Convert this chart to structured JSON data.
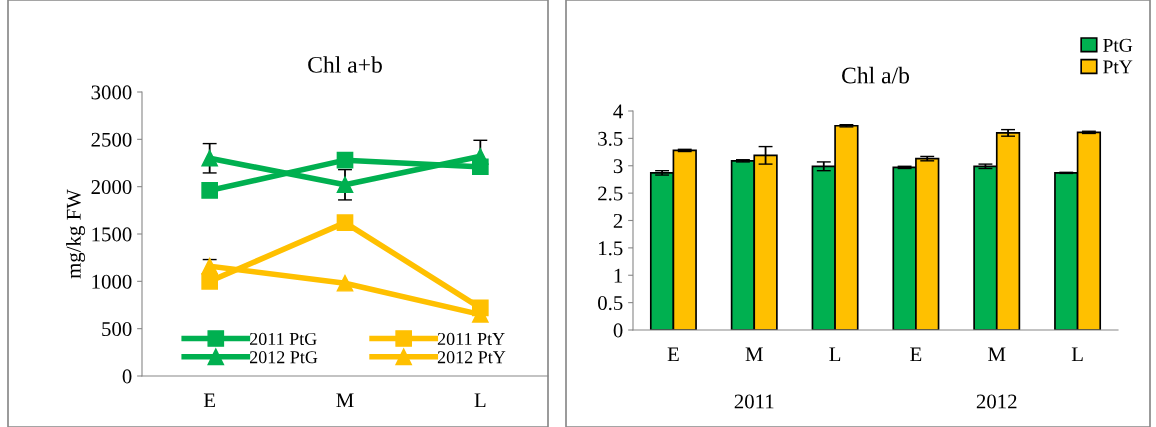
{
  "chart_data": [
    {
      "type": "line",
      "title": "Chl a+b",
      "ylabel": "mg/kg FW",
      "categories": [
        "E",
        "M",
        "L"
      ],
      "ylim": [
        0,
        3000
      ],
      "yticks": [
        0,
        500,
        1000,
        1500,
        2000,
        2500,
        3000
      ],
      "grid": false,
      "legend": "bottom",
      "series": [
        {
          "name": "2011 PtG",
          "color": "#00b050",
          "marker": "square",
          "values": [
            1960,
            2280,
            2210
          ]
        },
        {
          "name": "2012 PtG",
          "color": "#00b050",
          "marker": "triangle",
          "values": [
            2300,
            2020,
            2320
          ],
          "errors": [
            155,
            160,
            170
          ]
        },
        {
          "name": "2011 PtY",
          "color": "#ffc000",
          "marker": "square",
          "values": [
            1000,
            1620,
            720
          ]
        },
        {
          "name": "2012 PtY",
          "color": "#ffc000",
          "marker": "triangle",
          "values": [
            1160,
            980,
            650
          ],
          "errors": [
            70,
            null,
            null
          ]
        }
      ]
    },
    {
      "type": "bar",
      "title": "Chl a/b",
      "categories": [
        "E",
        "M",
        "L",
        "E",
        "M",
        "L"
      ],
      "ylim": [
        0,
        4
      ],
      "yticks": [
        0,
        0.5,
        1,
        1.5,
        2,
        2.5,
        3,
        3.5,
        4
      ],
      "grid": false,
      "legend": "top right",
      "annotations": [
        "2011",
        "2012"
      ],
      "series": [
        {
          "name": "PtG",
          "color": "#00b050",
          "values": [
            2.87,
            3.09,
            2.99,
            2.97,
            2.99,
            2.87
          ],
          "errors": [
            0.04,
            0.02,
            0.08,
            0.02,
            0.04,
            0.01
          ]
        },
        {
          "name": "PtY",
          "color": "#ffc000",
          "values": [
            3.28,
            3.19,
            3.73,
            3.13,
            3.6,
            3.61
          ],
          "errors": [
            0.02,
            0.16,
            0.02,
            0.04,
            0.06,
            0.02
          ]
        }
      ]
    }
  ]
}
